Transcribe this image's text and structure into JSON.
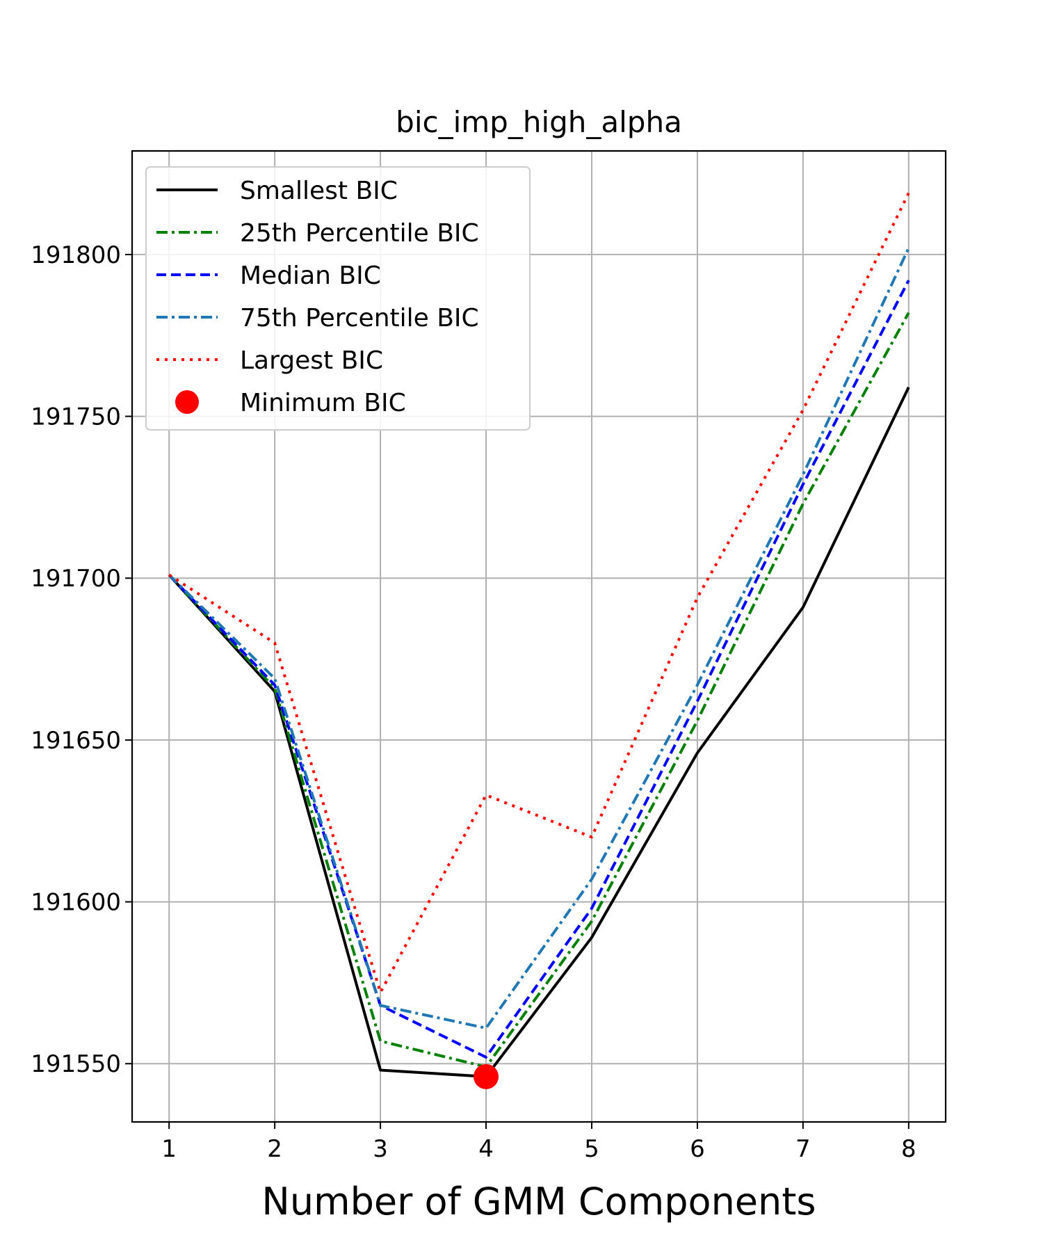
{
  "chart_data": {
    "type": "line",
    "title": "bic_imp_high_alpha",
    "xlabel": "Number of GMM Components",
    "ylabel": "",
    "x": [
      1,
      2,
      3,
      4,
      5,
      6,
      7,
      8
    ],
    "xlim": [
      0.65,
      8.35
    ],
    "ylim": [
      191532,
      191832
    ],
    "xticks": [
      "1",
      "2",
      "3",
      "4",
      "5",
      "6",
      "7",
      "8"
    ],
    "yticks": [
      191550,
      191600,
      191650,
      191700,
      191750,
      191800
    ],
    "yticklabels": [
      "191550",
      "191600",
      "191650",
      "191700",
      "191750",
      "191800"
    ],
    "grid": true,
    "legend_position": "upper-left",
    "series": [
      {
        "name": "Smallest BIC",
        "values": [
          191701,
          191665,
          191548,
          191546,
          191589,
          191646,
          191691,
          191759
        ],
        "color": "#000000",
        "dash": "solid"
      },
      {
        "name": "25th Percentile BIC",
        "values": [
          191701,
          191666,
          191557,
          191549,
          191594,
          191656,
          191723,
          191782
        ],
        "color": "#008000",
        "dash": "dashdot"
      },
      {
        "name": "Median BIC",
        "values": [
          191701,
          191667,
          191568,
          191552,
          191598,
          191662,
          191729,
          191792
        ],
        "color": "#0000ff",
        "dash": "dashed"
      },
      {
        "name": "75th Percentile BIC",
        "values": [
          191701,
          191669,
          191568,
          191561,
          191607,
          191667,
          191732,
          191802
        ],
        "color": "#1f77b4",
        "dash": "dashdot"
      },
      {
        "name": "Largest BIC",
        "values": [
          191701,
          191680,
          191572,
          191633,
          191620,
          191694,
          191752,
          191819
        ],
        "color": "#ff0000",
        "dash": "dotted"
      }
    ],
    "minimum_marker": {
      "name": "Minimum BIC",
      "x": 4,
      "y": 191546,
      "color": "#ff0000"
    }
  }
}
